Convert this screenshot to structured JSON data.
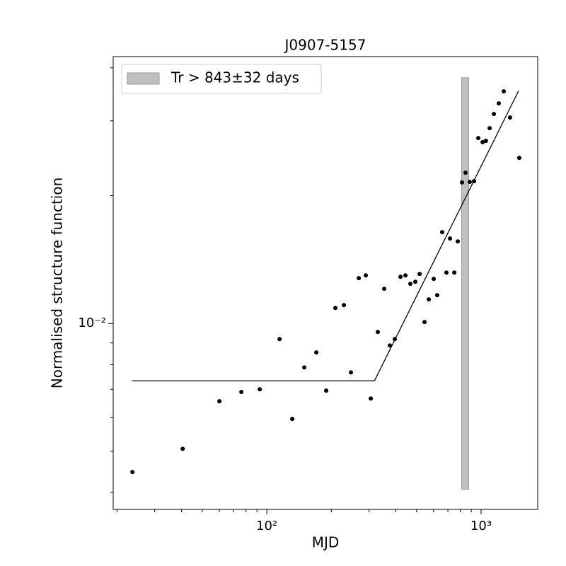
{
  "chart_data": {
    "type": "scatter",
    "title": "J0907-5157",
    "x_label": "MJD",
    "y_label": "Normalised structure function",
    "log_x": true,
    "log_y": true,
    "color": "#000000",
    "x": [
      23.6,
      40.5,
      60.1,
      76.1,
      92.7,
      114.7,
      131.5,
      149.6,
      170.3,
      189.3,
      208.9,
      229.0,
      247.0,
      268.7,
      289.8,
      305.6,
      329.6,
      353.1,
      375.2,
      395.6,
      420.6,
      443.6,
      467.7,
      493.2,
      516.4,
      544.5,
      570.0,
      601.0,
      624.0,
      658.2,
      689.0,
      716.1,
      749.9,
      778.4,
      814.6,
      846.1,
      885.4,
      926.9,
      970.3,
      1016,
      1054,
      1096,
      1147,
      1209,
      1276,
      1365,
      1507
    ],
    "values": [
      0.00447,
      0.00507,
      0.00656,
      0.0069,
      0.007,
      0.00919,
      0.00596,
      0.00788,
      0.00855,
      0.00695,
      0.01088,
      0.01105,
      0.00767,
      0.01279,
      0.01298,
      0.00666,
      0.00955,
      0.01207,
      0.00888,
      0.00919,
      0.01288,
      0.01298,
      0.0124,
      0.01254,
      0.01308,
      0.01008,
      0.0114,
      0.01274,
      0.01166,
      0.01641,
      0.01318,
      0.01585,
      0.01318,
      0.0156,
      0.02148,
      0.02265,
      0.02154,
      0.02163,
      0.02733,
      0.02673,
      0.02692,
      0.02884,
      0.03113,
      0.03298,
      0.0352,
      0.03055,
      0.02455
    ],
    "fit": {
      "x": [
        23.6,
        318,
        1496
      ],
      "values": [
        0.00733,
        0.00733,
        0.0353
      ],
      "color": "#000000"
    },
    "band": {
      "center": 843,
      "err": 32,
      "y": [
        0.00407,
        0.0379
      ],
      "color": "#bfbfbf",
      "label": "Tr > 843±32 days"
    },
    "legend": "upper left",
    "xlim": [
      19.2,
      1837
    ],
    "ylim": [
      0.00365,
      0.0425
    ],
    "xticks": [
      {
        "value": 100,
        "label": "10²"
      },
      {
        "value": 1000,
        "label": "10³"
      }
    ],
    "xminor": [
      20,
      30,
      40,
      50,
      60,
      70,
      80,
      90,
      200,
      300,
      400,
      500,
      600,
      700,
      800,
      900
    ],
    "yticks": [
      {
        "value": 0.01,
        "label": "10⁻²"
      }
    ],
    "yminor": [
      0.004,
      0.005,
      0.006,
      0.007,
      0.008,
      0.009,
      0.02,
      0.03,
      0.04
    ]
  }
}
